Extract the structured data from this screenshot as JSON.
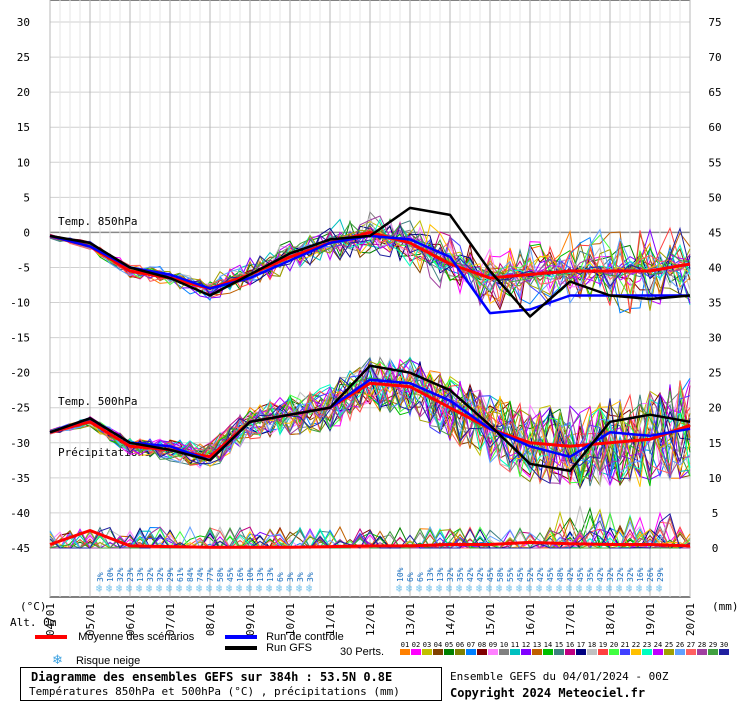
{
  "chart_data": {
    "type": "line",
    "title": "Diagramme des ensembles GEFS sur 384h : 53.5N 0.8E",
    "subtitle": "Températures 850hPa et 500hPa (°C) , précipitations (mm)",
    "left_axis_unit": "(°C)",
    "right_axis_unit": "(mm)",
    "altitude_label": "Alt. 0m",
    "left_axis": {
      "min": -45,
      "max": 30,
      "step": 5
    },
    "right_axis": {
      "min": 0,
      "max": 75,
      "step": 5
    },
    "x_ticks": [
      "04/01",
      "05/01",
      "06/01",
      "07/01",
      "08/01",
      "09/01",
      "10/01",
      "11/01",
      "12/01",
      "13/01",
      "14/01",
      "15/01",
      "16/01",
      "17/01",
      "18/01",
      "19/01",
      "20/01"
    ],
    "panel_labels": {
      "t850": "Temp. 850hPa",
      "t500": "Temp. 500hPa",
      "precip": "Précipitations"
    },
    "time_hours": [
      0,
      24,
      48,
      72,
      96,
      120,
      144,
      168,
      192,
      216,
      240,
      264,
      288,
      312,
      336,
      360,
      384
    ],
    "series": [
      {
        "name": "Moyenne des scénarios",
        "panel": "t850",
        "values": [
          -0.5,
          -2,
          -5.5,
          -6.5,
          -8,
          -6,
          -3.5,
          -1.5,
          0,
          -1.5,
          -4.5,
          -6.5,
          -6,
          -5.5,
          -5.5,
          -5.5,
          -4.5
        ]
      },
      {
        "name": "Run de contrôle",
        "panel": "t850",
        "values": [
          -0.5,
          -2,
          -5,
          -6,
          -8,
          -6.5,
          -4,
          -1.5,
          -0.5,
          -1,
          -3.5,
          -11.5,
          -11,
          -9,
          -9,
          -9,
          -9
        ]
      },
      {
        "name": "Run GFS",
        "panel": "t850",
        "values": [
          -0.5,
          -1.5,
          -5,
          -6.5,
          -9,
          -6,
          -3,
          -1,
          -0.5,
          3.5,
          2.5,
          -5.5,
          -12,
          -7,
          -9,
          -9.5,
          -9
        ]
      },
      {
        "name": "Moyenne des scénarios",
        "panel": "t500",
        "values": [
          -28.5,
          -27,
          -30.5,
          -31,
          -32,
          -27,
          -26,
          -25,
          -21.5,
          -22,
          -25,
          -28,
          -30,
          -30.5,
          -30,
          -29.5,
          -27.5
        ]
      },
      {
        "name": "Run de contrôle",
        "panel": "t500",
        "values": [
          -28.5,
          -26.5,
          -30,
          -30.5,
          -32.5,
          -27,
          -26,
          -25,
          -21,
          -21.5,
          -24,
          -28,
          -30.5,
          -32,
          -28.5,
          -29,
          -28
        ]
      },
      {
        "name": "Run GFS",
        "panel": "t500",
        "values": [
          -28.5,
          -26.5,
          -30,
          -31,
          -32.5,
          -27,
          -26,
          -25,
          -19,
          -20,
          -22.5,
          -27.5,
          -33,
          -34,
          -27,
          -26,
          -27
        ]
      },
      {
        "name": "Moyenne des scénarios",
        "panel": "precip",
        "values": [
          0.5,
          2.5,
          0.3,
          0.2,
          0.1,
          0.1,
          0.1,
          0.2,
          0.3,
          0.3,
          0.5,
          0.5,
          0.8,
          0.6,
          0.5,
          0.5,
          0.3
        ]
      }
    ],
    "snow_risk_top": [
      "3%",
      "10%",
      "32%",
      "23%",
      "13%",
      "32%",
      "32%",
      "29%",
      "61%",
      "84%",
      "74%",
      "77%",
      "58%",
      "45%",
      "16%",
      "10%",
      "13%",
      "13%",
      "6%",
      "3%",
      "3%",
      "3%"
    ],
    "snow_risk_bottom": [
      "10%",
      "6%",
      "6%",
      "13%",
      "13%",
      "32%",
      "35%",
      "42%",
      "42%",
      "45%",
      "58%",
      "55%",
      "45%",
      "52%",
      "42%",
      "45%",
      "48%",
      "42%",
      "45%",
      "35%",
      "42%",
      "32%",
      "32%",
      "32%",
      "16%",
      "26%",
      "29%"
    ]
  },
  "legend": {
    "mean": "Moyenne des scénarios",
    "control": "Run de contrôle",
    "gfs": "Run GFS",
    "snow": "Risque neige",
    "perts": "30 Perts.",
    "pert_numbers": [
      "01",
      "02",
      "03",
      "04",
      "05",
      "06",
      "07",
      "08",
      "09",
      "10",
      "11",
      "12",
      "13",
      "14",
      "15",
      "16",
      "17",
      "18",
      "19",
      "20",
      "21",
      "22",
      "23",
      "24",
      "25",
      "26",
      "27",
      "28",
      "29",
      "30"
    ],
    "pert_colors": [
      "#ff8000",
      "#ff00ff",
      "#c0c000",
      "#804000",
      "#008000",
      "#808000",
      "#0080ff",
      "#800000",
      "#ff80ff",
      "#808080",
      "#00c0c0",
      "#8000ff",
      "#c06000",
      "#00c000",
      "#408080",
      "#c00080",
      "#000080",
      "#c0c0c0",
      "#ff4040",
      "#40ff40",
      "#4040ff",
      "#ffc000",
      "#00ffc0",
      "#c000ff",
      "#a0a000",
      "#60a0ff",
      "#ff6060",
      "#a040a0",
      "#40a040",
      "#2020a0"
    ],
    "colors": {
      "mean": "#ff0000",
      "control": "#0000ff",
      "gfs": "#000000",
      "snow": "#7ec8f0"
    }
  },
  "footer": {
    "ensemble": "Ensemble GEFS du 04/01/2024 - 00Z",
    "copyright": "Copyright 2024 Meteociel.fr"
  }
}
